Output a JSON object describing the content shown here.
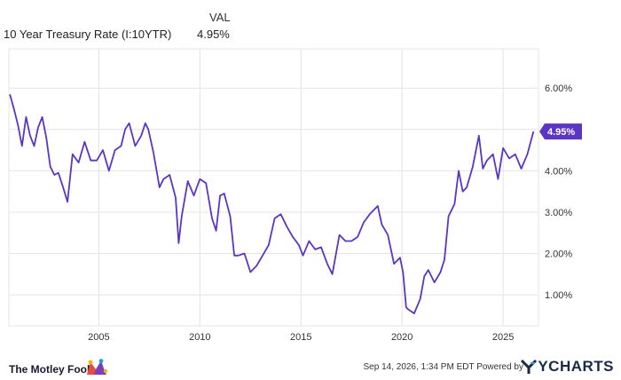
{
  "legend": {
    "column_header": "VAL",
    "series_name": "10 Year Treasury Rate (I:10YTR)",
    "series_value": "4.95%"
  },
  "chart_data": {
    "type": "line",
    "title": "",
    "xlabel": "",
    "ylabel": "",
    "x_ticks": [
      "2005",
      "2010",
      "2015",
      "2020",
      "2025"
    ],
    "y_ticks": [
      "1.00%",
      "2.00%",
      "3.00%",
      "4.00%",
      "5.00%",
      "6.00%"
    ],
    "xlim": [
      2000.55,
      2026.75
    ],
    "ylim": [
      0.25,
      6.95
    ],
    "grid": true,
    "last_value_label": "4.95%",
    "line_color": "#5b35c4",
    "series": [
      {
        "name": "10 Year Treasury Rate (I:10YTR)",
        "x": [
          2000.6,
          2000.8,
          2001.0,
          2001.2,
          2001.4,
          2001.6,
          2001.8,
          2002.0,
          2002.2,
          2002.4,
          2002.6,
          2002.8,
          2003.0,
          2003.2,
          2003.45,
          2003.7,
          2004.0,
          2004.3,
          2004.6,
          2004.9,
          2005.2,
          2005.5,
          2005.8,
          2006.1,
          2006.3,
          2006.5,
          2006.8,
          2007.1,
          2007.3,
          2007.45,
          2007.7,
          2008.0,
          2008.2,
          2008.5,
          2008.8,
          2008.95,
          2009.1,
          2009.4,
          2009.7,
          2010.0,
          2010.3,
          2010.6,
          2010.8,
          2011.0,
          2011.2,
          2011.5,
          2011.7,
          2011.9,
          2012.2,
          2012.5,
          2012.8,
          2013.1,
          2013.4,
          2013.7,
          2014.0,
          2014.3,
          2014.6,
          2014.9,
          2015.1,
          2015.4,
          2015.7,
          2016.0,
          2016.3,
          2016.55,
          2016.9,
          2017.2,
          2017.5,
          2017.8,
          2018.1,
          2018.4,
          2018.8,
          2019.0,
          2019.3,
          2019.6,
          2019.9,
          2020.05,
          2020.2,
          2020.3,
          2020.6,
          2020.9,
          2021.1,
          2021.3,
          2021.6,
          2021.9,
          2022.1,
          2022.3,
          2022.6,
          2022.8,
          2023.0,
          2023.2,
          2023.5,
          2023.8,
          2024.0,
          2024.2,
          2024.5,
          2024.75,
          2025.0,
          2025.3,
          2025.6,
          2025.9,
          2026.2,
          2026.5
        ],
        "values": [
          5.85,
          5.5,
          5.1,
          4.6,
          5.3,
          4.85,
          4.6,
          5.05,
          5.3,
          4.8,
          4.1,
          3.9,
          3.95,
          3.65,
          3.25,
          4.4,
          4.2,
          4.7,
          4.25,
          4.25,
          4.5,
          4.0,
          4.5,
          4.6,
          5.0,
          5.15,
          4.6,
          4.85,
          5.15,
          5.0,
          4.45,
          3.6,
          3.8,
          3.9,
          3.35,
          2.25,
          2.9,
          3.75,
          3.4,
          3.8,
          3.7,
          2.85,
          2.55,
          3.4,
          3.45,
          2.9,
          1.95,
          1.95,
          2.0,
          1.55,
          1.7,
          1.95,
          2.2,
          2.85,
          2.95,
          2.65,
          2.4,
          2.2,
          1.95,
          2.3,
          2.1,
          2.15,
          1.75,
          1.5,
          2.45,
          2.3,
          2.3,
          2.4,
          2.75,
          2.95,
          3.15,
          2.7,
          2.45,
          1.75,
          1.9,
          1.55,
          0.7,
          0.65,
          0.55,
          0.9,
          1.45,
          1.6,
          1.3,
          1.55,
          1.85,
          2.9,
          3.2,
          4.0,
          3.5,
          3.6,
          4.1,
          4.85,
          4.05,
          4.25,
          4.4,
          3.8,
          4.55,
          4.3,
          4.4,
          4.05,
          4.4,
          4.95
        ]
      }
    ]
  },
  "footer": {
    "brand_left": "The Motley Fool",
    "timestamp": "Sep 14, 2026, 1:34 PM EDT",
    "powered_by": "Powered by",
    "brand_right": "YCHARTS"
  },
  "colors": {
    "line": "#5b35c4",
    "grid": "#e4e4e4",
    "axis_text": "#333333",
    "label_bg": "#5b35c4"
  }
}
